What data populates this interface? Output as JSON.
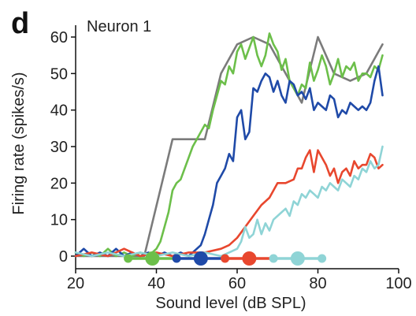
{
  "panel_letter": "d",
  "chart_data": {
    "type": "line",
    "title": "Neuron 1",
    "xlabel": "Sound level (dB SPL)",
    "ylabel": "Firing rate (spikes/s)",
    "xlim": [
      20,
      100
    ],
    "ylim": [
      0,
      65
    ],
    "xticks": [
      20,
      40,
      60,
      80,
      100
    ],
    "yticks": [
      0,
      10,
      20,
      30,
      40,
      50,
      60
    ],
    "grid": false,
    "legend": "none",
    "series": [
      {
        "color": "#7b7b7b",
        "x": [
          20,
          37,
          44,
          48,
          52,
          56,
          60,
          64,
          68,
          72,
          76,
          80,
          84,
          88,
          92,
          96
        ],
        "y": [
          0,
          0,
          32,
          32,
          32,
          50,
          58,
          60,
          58,
          50,
          42,
          60,
          50,
          48,
          50,
          58
        ]
      },
      {
        "color": "#6cbf4a",
        "x": [
          20,
          22,
          24,
          26,
          28,
          30,
          32,
          34,
          36,
          38,
          40,
          41,
          42,
          43,
          44,
          45,
          46,
          47,
          48,
          49,
          50,
          51,
          52,
          53,
          54,
          55,
          56,
          57,
          58,
          59,
          60,
          61,
          62,
          63,
          64,
          65,
          66,
          67,
          68,
          69,
          70,
          71,
          72,
          73,
          74,
          75,
          76,
          77,
          78,
          79,
          80,
          81,
          82,
          83,
          84,
          85,
          86,
          87,
          88,
          89,
          90,
          91,
          92,
          93,
          94,
          95,
          96
        ],
        "y": [
          1,
          0,
          1,
          0,
          2,
          0,
          1,
          0,
          1,
          0,
          2,
          4,
          8,
          12,
          18,
          20,
          21,
          24,
          27,
          30,
          32,
          34,
          36,
          35,
          40,
          44,
          48,
          47,
          52,
          50,
          56,
          58,
          54,
          57,
          60,
          55,
          52,
          55,
          61,
          58,
          56,
          51,
          54,
          48,
          46,
          44,
          47,
          46,
          53,
          48,
          51,
          55,
          52,
          47,
          50,
          54,
          49,
          52,
          51,
          53,
          48,
          50,
          50,
          49,
          52,
          51,
          55
        ]
      },
      {
        "color": "#1f4aa8",
        "x": [
          20,
          22,
          24,
          26,
          28,
          30,
          32,
          34,
          36,
          38,
          40,
          42,
          44,
          46,
          48,
          50,
          51,
          52,
          53,
          54,
          55,
          56,
          57,
          58,
          59,
          60,
          61,
          62,
          63,
          64,
          65,
          66,
          67,
          68,
          69,
          70,
          71,
          72,
          73,
          74,
          75,
          76,
          77,
          78,
          79,
          80,
          81,
          82,
          83,
          84,
          85,
          86,
          87,
          88,
          89,
          90,
          91,
          92,
          93,
          94,
          95,
          96
        ],
        "y": [
          0,
          2,
          0,
          1,
          0,
          2,
          0,
          1,
          0,
          1,
          0,
          1,
          0,
          1,
          0,
          2,
          3,
          6,
          10,
          14,
          20,
          22,
          24,
          28,
          26,
          38,
          40,
          32,
          34,
          46,
          45,
          48,
          50,
          49,
          45,
          48,
          44,
          42,
          48,
          47,
          44,
          45,
          43,
          46,
          40,
          42,
          41,
          40,
          44,
          43,
          38,
          40,
          39,
          42,
          41,
          40,
          41,
          40,
          42,
          48,
          52,
          44
        ]
      },
      {
        "color": "#e8472e",
        "x": [
          20,
          24,
          28,
          32,
          36,
          40,
          44,
          48,
          52,
          56,
          58,
          60,
          62,
          64,
          66,
          68,
          70,
          72,
          74,
          75,
          76,
          77,
          78,
          79,
          80,
          81,
          82,
          83,
          84,
          85,
          86,
          87,
          88,
          89,
          90,
          91,
          92,
          93,
          94,
          95,
          96
        ],
        "y": [
          0,
          1,
          0,
          2,
          0,
          1,
          0,
          1,
          1,
          2,
          3,
          5,
          8,
          11,
          14,
          16,
          20,
          20,
          21,
          24,
          24,
          27,
          29,
          23,
          29,
          27,
          25,
          22,
          24,
          20,
          23,
          24,
          22,
          26,
          24,
          25,
          25,
          28,
          27,
          24,
          25
        ]
      },
      {
        "color": "#8fd4d6",
        "x": [
          20,
          24,
          28,
          32,
          36,
          40,
          44,
          48,
          52,
          56,
          58,
          60,
          61,
          62,
          63,
          64,
          65,
          66,
          67,
          68,
          69,
          70,
          71,
          72,
          73,
          74,
          75,
          76,
          77,
          78,
          79,
          80,
          81,
          82,
          83,
          84,
          85,
          86,
          87,
          88,
          89,
          90,
          91,
          92,
          93,
          94,
          95,
          96
        ],
        "y": [
          1,
          0,
          1,
          0,
          1,
          0,
          1,
          0,
          1,
          0,
          1,
          2,
          4,
          8,
          5,
          6,
          10,
          6,
          9,
          7,
          10,
          11,
          12,
          13,
          11,
          15,
          14,
          17,
          16,
          18,
          17,
          16,
          19,
          18,
          20,
          19,
          18,
          21,
          20,
          19,
          22,
          21,
          24,
          23,
          26,
          24,
          25,
          30
        ]
      }
    ],
    "threshold_markers": [
      {
        "x": 33,
        "size": "small",
        "color": "#6cbf4a"
      },
      {
        "x": 39,
        "size": "large",
        "color": "#6cbf4a"
      },
      {
        "x": 45,
        "size": "small",
        "color": "#1f4aa8"
      },
      {
        "x": 51,
        "size": "large",
        "color": "#1f4aa8"
      },
      {
        "x": 57,
        "size": "small",
        "color": "#e8472e"
      },
      {
        "x": 63,
        "size": "large",
        "color": "#e8472e"
      },
      {
        "x": 69,
        "size": "small",
        "color": "#8fd4d6"
      },
      {
        "x": 75,
        "size": "large",
        "color": "#8fd4d6"
      },
      {
        "x": 81,
        "size": "small",
        "color": "#8fd4d6"
      }
    ],
    "marker_line_segments": [
      {
        "from": 33,
        "to": 45,
        "color": "#6cbf4a"
      },
      {
        "from": 45,
        "to": 57,
        "color": "#1f4aa8"
      },
      {
        "from": 57,
        "to": 69,
        "color": "#e8472e"
      },
      {
        "from": 69,
        "to": 81,
        "color": "#8fd4d6"
      }
    ]
  }
}
